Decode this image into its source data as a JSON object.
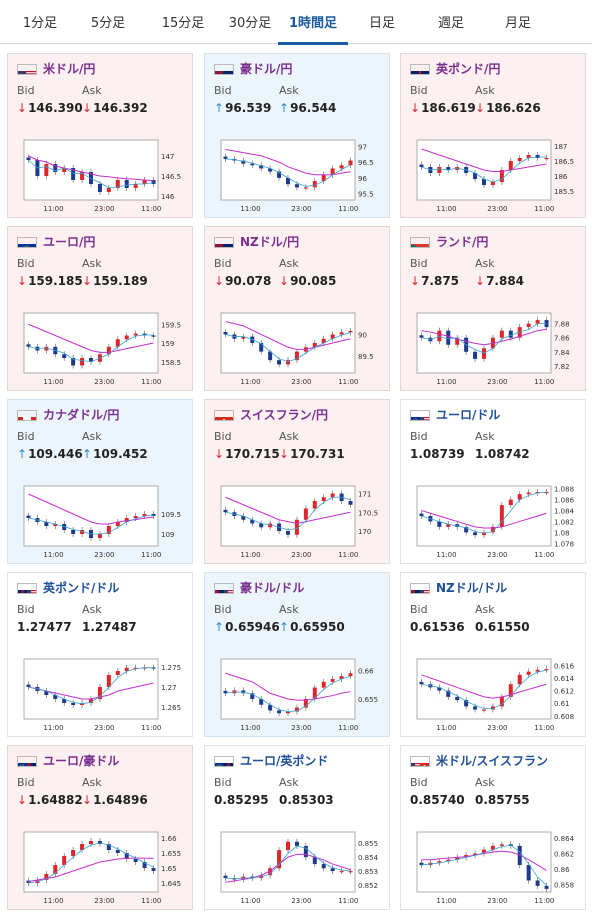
{
  "tabs": [
    {
      "label": "1分足",
      "active": false
    },
    {
      "label": "5分足",
      "active": false
    },
    {
      "label": "15分足",
      "active": false
    },
    {
      "label": "30分足",
      "active": false
    },
    {
      "label": "1時間足",
      "active": true
    },
    {
      "label": "日足",
      "active": false
    },
    {
      "label": "週足",
      "active": false
    },
    {
      "label": "月足",
      "active": false
    }
  ],
  "labels": {
    "bid": "Bid",
    "ask": "Ask"
  },
  "colors": {
    "accent": "#1a5aa0",
    "pair_text": "#7a2f90",
    "down_arrow": "#d9262b",
    "up_arrow": "#2a8ec6",
    "down_bg": "#fdf0f0",
    "up_bg": "#ecf5fb",
    "candle_up": "#e0262b",
    "candle_down": "#1f3a8a",
    "ma_line": "#c52fd0",
    "ma_short": "#37a3d6"
  },
  "cards": [
    {
      "pair": "米ドル/円",
      "flag": "us-flag",
      "trend": "down",
      "bid": "146.390",
      "ask": "146.392",
      "bid_dir": "down",
      "ask_dir": "down",
      "chart_data": {
        "type": "candlestick",
        "x_ticks": [
          "11:00",
          "23:00",
          "11:00"
        ],
        "y_ticks": [
          "147",
          "146.5",
          "146"
        ],
        "ylim": [
          145.9,
          147.4
        ],
        "closes": [
          146.9,
          146.5,
          146.8,
          146.6,
          146.7,
          146.4,
          146.6,
          146.3,
          146.1,
          146.2,
          146.4,
          146.2,
          146.3,
          146.4,
          146.3
        ],
        "ma": [
          147.0,
          146.9,
          146.85,
          146.75,
          146.7,
          146.65,
          146.6,
          146.55,
          146.5,
          146.48,
          146.45,
          146.43,
          146.42,
          146.4,
          146.38
        ]
      }
    },
    {
      "pair": "豪ドル/円",
      "flag": "au-flag",
      "trend": "up",
      "bid": "96.539",
      "ask": "96.544",
      "bid_dir": "up",
      "ask_dir": "up",
      "chart_data": {
        "type": "candlestick",
        "x_ticks": [
          "11:00",
          "23:00",
          "11:00"
        ],
        "y_ticks": [
          "97",
          "96.5",
          "96",
          "95.5"
        ],
        "ylim": [
          95.3,
          97.2
        ],
        "closes": [
          96.6,
          96.55,
          96.45,
          96.4,
          96.3,
          96.2,
          96.0,
          95.8,
          95.7,
          95.7,
          95.9,
          96.1,
          96.3,
          96.4,
          96.55
        ],
        "ma": [
          96.9,
          96.85,
          96.8,
          96.75,
          96.7,
          96.6,
          96.5,
          96.35,
          96.25,
          96.15,
          96.1,
          96.1,
          96.1,
          96.15,
          96.2
        ]
      }
    },
    {
      "pair": "英ポンド/円",
      "flag": "uk-flag",
      "trend": "down",
      "bid": "186.619",
      "ask": "186.626",
      "bid_dir": "down",
      "ask_dir": "down",
      "chart_data": {
        "type": "candlestick",
        "x_ticks": [
          "11:00",
          "23:00",
          "11:00"
        ],
        "y_ticks": [
          "187",
          "186.5",
          "186",
          "185.5"
        ],
        "ylim": [
          185.2,
          187.2
        ],
        "closes": [
          186.3,
          186.1,
          186.3,
          186.2,
          186.3,
          186.1,
          185.9,
          185.7,
          185.8,
          186.2,
          186.5,
          186.6,
          186.7,
          186.6,
          186.6
        ],
        "ma": [
          186.9,
          186.8,
          186.7,
          186.6,
          186.5,
          186.4,
          186.3,
          186.2,
          186.15,
          186.15,
          186.2,
          186.25,
          186.3,
          186.35,
          186.4
        ]
      }
    },
    {
      "pair": "ユーロ/円",
      "flag": "eu-flag",
      "trend": "down",
      "bid": "159.185",
      "ask": "159.189",
      "bid_dir": "down",
      "ask_dir": "down",
      "chart_data": {
        "type": "candlestick",
        "x_ticks": [
          "11:00",
          "23:00",
          "11:00"
        ],
        "y_ticks": [
          "159.5",
          "159",
          "158.5"
        ],
        "ylim": [
          158.2,
          159.8
        ],
        "closes": [
          158.9,
          158.8,
          158.9,
          158.7,
          158.6,
          158.4,
          158.6,
          158.5,
          158.7,
          158.9,
          159.1,
          159.2,
          159.25,
          159.2,
          159.18
        ],
        "ma": [
          159.5,
          159.4,
          159.3,
          159.2,
          159.1,
          159.0,
          158.9,
          158.8,
          158.75,
          158.75,
          158.8,
          158.85,
          158.9,
          158.95,
          159.0
        ]
      }
    },
    {
      "pair": "NZドル/円",
      "flag": "nz-flag",
      "trend": "down",
      "bid": "90.078",
      "ask": "90.085",
      "bid_dir": "down",
      "ask_dir": "down",
      "chart_data": {
        "type": "candlestick",
        "x_ticks": [
          "11:00",
          "23:00",
          "11:00"
        ],
        "y_ticks": [
          "90",
          "89.5"
        ],
        "ylim": [
          89.1,
          90.5
        ],
        "closes": [
          90.0,
          89.9,
          89.95,
          89.8,
          89.6,
          89.4,
          89.3,
          89.4,
          89.6,
          89.7,
          89.8,
          89.9,
          90.0,
          90.05,
          90.08
        ],
        "ma": [
          90.3,
          90.25,
          90.2,
          90.1,
          90.0,
          89.9,
          89.8,
          89.7,
          89.65,
          89.65,
          89.7,
          89.75,
          89.8,
          89.85,
          89.9
        ]
      }
    },
    {
      "pair": "ランド/円",
      "flag": "za-flag",
      "trend": "down",
      "bid": "7.875",
      "ask": "7.884",
      "bid_dir": "down",
      "ask_dir": "down",
      "chart_data": {
        "type": "candlestick",
        "x_ticks": [
          "11:00",
          "23:00",
          "11:00"
        ],
        "y_ticks": [
          "7.88",
          "7.86",
          "7.84",
          "7.82"
        ],
        "ylim": [
          7.81,
          7.895
        ],
        "closes": [
          7.86,
          7.855,
          7.87,
          7.85,
          7.86,
          7.84,
          7.83,
          7.845,
          7.86,
          7.87,
          7.86,
          7.875,
          7.88,
          7.885,
          7.875
        ],
        "ma": [
          7.87,
          7.868,
          7.865,
          7.862,
          7.858,
          7.855,
          7.852,
          7.85,
          7.852,
          7.855,
          7.858,
          7.862,
          7.866,
          7.87,
          7.872
        ]
      }
    },
    {
      "pair": "カナダドル/円",
      "flag": "ca-flag",
      "trend": "up",
      "bid": "109.446",
      "ask": "109.452",
      "bid_dir": "up",
      "ask_dir": "up",
      "chart_data": {
        "type": "candlestick",
        "x_ticks": [
          "11:00",
          "23:00",
          "11:00"
        ],
        "y_ticks": [
          "109.5",
          "109"
        ],
        "ylim": [
          108.7,
          110.2
        ],
        "closes": [
          109.4,
          109.3,
          109.2,
          109.25,
          109.1,
          109.0,
          109.1,
          108.9,
          109.0,
          109.2,
          109.3,
          109.4,
          109.45,
          109.5,
          109.45
        ],
        "ma": [
          110.0,
          109.9,
          109.8,
          109.7,
          109.6,
          109.5,
          109.4,
          109.3,
          109.25,
          109.25,
          109.3,
          109.33,
          109.36,
          109.4,
          109.42
        ]
      }
    },
    {
      "pair": "スイスフラン/円",
      "flag": "ch-flag",
      "trend": "down",
      "bid": "170.715",
      "ask": "170.731",
      "bid_dir": "down",
      "ask_dir": "down",
      "chart_data": {
        "type": "candlestick",
        "x_ticks": [
          "11:00",
          "23:00",
          "11:00"
        ],
        "y_ticks": [
          "171",
          "170.5",
          "170"
        ],
        "ylim": [
          169.6,
          171.2
        ],
        "closes": [
          170.5,
          170.4,
          170.3,
          170.2,
          170.1,
          170.2,
          170.0,
          169.9,
          170.3,
          170.6,
          170.8,
          170.9,
          171.0,
          170.8,
          170.7
        ],
        "ma": [
          170.9,
          170.8,
          170.7,
          170.6,
          170.5,
          170.4,
          170.3,
          170.25,
          170.2,
          170.25,
          170.3,
          170.35,
          170.4,
          170.45,
          170.5
        ]
      }
    },
    {
      "pair": "ユーロ/ドル",
      "flag": "eu-us-flag",
      "trend": "flat",
      "bid": "1.08739",
      "ask": "1.08742",
      "bid_dir": "none",
      "ask_dir": "none",
      "chart_data": {
        "type": "candlestick",
        "x_ticks": [
          "11:00",
          "23:00",
          "11:00"
        ],
        "y_ticks": [
          "1.088",
          "1.086",
          "1.084",
          "1.082",
          "1.08",
          "1.078"
        ],
        "ylim": [
          1.0775,
          1.0885
        ],
        "closes": [
          1.083,
          1.082,
          1.081,
          1.0815,
          1.081,
          1.08,
          1.0795,
          1.08,
          1.081,
          1.085,
          1.086,
          1.087,
          1.0873,
          1.0874,
          1.0874
        ],
        "ma": [
          1.084,
          1.0835,
          1.083,
          1.0825,
          1.082,
          1.0815,
          1.081,
          1.0808,
          1.0808,
          1.081,
          1.0815,
          1.082,
          1.0825,
          1.083,
          1.0835
        ]
      }
    },
    {
      "pair": "英ポンド/ドル",
      "flag": "uk-us-flag",
      "trend": "flat",
      "bid": "1.27477",
      "ask": "1.27487",
      "bid_dir": "none",
      "ask_dir": "none",
      "chart_data": {
        "type": "candlestick",
        "x_ticks": [
          "11:00",
          "23:00",
          "11:00"
        ],
        "y_ticks": [
          "1.275",
          "1.27",
          "1.265"
        ],
        "ylim": [
          1.262,
          1.277
        ],
        "closes": [
          1.27,
          1.269,
          1.268,
          1.267,
          1.266,
          1.2655,
          1.266,
          1.267,
          1.27,
          1.273,
          1.274,
          1.2748,
          1.2748,
          1.2749,
          1.2748
        ],
        "ma": [
          1.27,
          1.2695,
          1.269,
          1.2685,
          1.268,
          1.2675,
          1.267,
          1.267,
          1.2675,
          1.268,
          1.269,
          1.2695,
          1.27,
          1.2705,
          1.271
        ]
      }
    },
    {
      "pair": "豪ドル/ドル",
      "flag": "au-us-flag",
      "trend": "up",
      "bid": "0.65946",
      "ask": "0.65950",
      "bid_dir": "up",
      "ask_dir": "up",
      "chart_data": {
        "type": "candlestick",
        "x_ticks": [
          "11:00",
          "23:00",
          "11:00"
        ],
        "y_ticks": [
          "0.66",
          "0.655"
        ],
        "ylim": [
          0.6515,
          0.662
        ],
        "closes": [
          0.656,
          0.6565,
          0.656,
          0.655,
          0.654,
          0.653,
          0.6525,
          0.6528,
          0.6535,
          0.655,
          0.657,
          0.658,
          0.6585,
          0.659,
          0.6595
        ],
        "ma": [
          0.6595,
          0.659,
          0.6585,
          0.658,
          0.657,
          0.656,
          0.6555,
          0.655,
          0.6548,
          0.6548,
          0.655,
          0.6553,
          0.6556,
          0.656,
          0.6563
        ]
      }
    },
    {
      "pair": "NZドル/ドル",
      "flag": "nz-us-flag",
      "trend": "flat",
      "bid": "0.61536",
      "ask": "0.61550",
      "bid_dir": "none",
      "ask_dir": "none",
      "chart_data": {
        "type": "candlestick",
        "x_ticks": [
          "11:00",
          "23:00",
          "11:00"
        ],
        "y_ticks": [
          "0.616",
          "0.614",
          "0.612",
          "0.61",
          "0.608"
        ],
        "ylim": [
          0.6075,
          0.617
        ],
        "closes": [
          0.613,
          0.6125,
          0.612,
          0.611,
          0.6105,
          0.6095,
          0.609,
          0.609,
          0.6095,
          0.611,
          0.613,
          0.6145,
          0.615,
          0.6153,
          0.6154
        ],
        "ma": [
          0.6145,
          0.614,
          0.6135,
          0.613,
          0.6125,
          0.612,
          0.6115,
          0.611,
          0.6108,
          0.611,
          0.6113,
          0.6118,
          0.6122,
          0.6126,
          0.613
        ]
      }
    },
    {
      "pair": "ユーロ/豪ドル",
      "flag": "eu-au-flag",
      "trend": "down",
      "bid": "1.64882",
      "ask": "1.64896",
      "bid_dir": "down",
      "ask_dir": "down",
      "chart_data": {
        "type": "candlestick",
        "x_ticks": [
          "11:00",
          "23:00",
          "11:00"
        ],
        "y_ticks": [
          "1.66",
          "1.655",
          "1.65",
          "1.645"
        ],
        "ylim": [
          1.642,
          1.662
        ],
        "closes": [
          1.645,
          1.646,
          1.648,
          1.651,
          1.654,
          1.656,
          1.658,
          1.659,
          1.658,
          1.656,
          1.655,
          1.653,
          1.652,
          1.65,
          1.649
        ],
        "ma": [
          1.6455,
          1.646,
          1.6465,
          1.647,
          1.648,
          1.649,
          1.65,
          1.651,
          1.652,
          1.6525,
          1.653,
          1.6532,
          1.6533,
          1.6533,
          1.6532
        ]
      }
    },
    {
      "pair": "ユーロ/英ポンド",
      "flag": "eu-uk-flag",
      "trend": "flat",
      "bid": "0.85295",
      "ask": "0.85303",
      "bid_dir": "none",
      "ask_dir": "none",
      "chart_data": {
        "type": "candlestick",
        "x_ticks": [
          "11:00",
          "23:00",
          "11:00"
        ],
        "y_ticks": [
          "0.855",
          "0.854",
          "0.853",
          "0.852"
        ],
        "ylim": [
          0.8515,
          0.8558
        ],
        "closes": [
          0.8525,
          0.8524,
          0.8526,
          0.8525,
          0.8527,
          0.8532,
          0.8545,
          0.8551,
          0.8548,
          0.854,
          0.8535,
          0.8532,
          0.853,
          0.853,
          0.853
        ],
        "ma": [
          0.8522,
          0.8523,
          0.8524,
          0.8525,
          0.8527,
          0.853,
          0.8535,
          0.854,
          0.8542,
          0.8542,
          0.854,
          0.8538,
          0.8535,
          0.8533,
          0.8531
        ]
      }
    },
    {
      "pair": "米ドル/スイスフラン",
      "flag": "us-ch-flag",
      "trend": "flat",
      "bid": "0.85740",
      "ask": "0.85755",
      "bid_dir": "none",
      "ask_dir": "none",
      "chart_data": {
        "type": "candlestick",
        "x_ticks": [
          "11:00",
          "23:00",
          "11:00"
        ],
        "y_ticks": [
          "0.864",
          "0.862",
          "0.86",
          "0.858"
        ],
        "ylim": [
          0.857,
          0.8648
        ],
        "closes": [
          0.8605,
          0.8608,
          0.861,
          0.8612,
          0.8615,
          0.8618,
          0.862,
          0.8625,
          0.863,
          0.8632,
          0.863,
          0.8605,
          0.8585,
          0.8578,
          0.8574
        ],
        "ma": [
          0.8612,
          0.8612,
          0.8613,
          0.8614,
          0.8615,
          0.8616,
          0.8618,
          0.862,
          0.8622,
          0.8623,
          0.8622,
          0.8618,
          0.8612,
          0.8605,
          0.8598
        ]
      }
    }
  ]
}
